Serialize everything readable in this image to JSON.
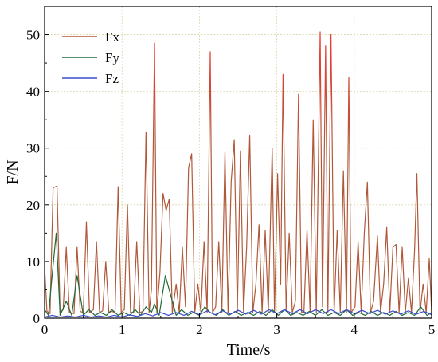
{
  "chart_data": {
    "type": "line",
    "title": "",
    "xlabel": "Time/s",
    "ylabel": "F/N",
    "xlim": [
      0,
      5
    ],
    "ylim": [
      0,
      55
    ],
    "x_ticks": [
      0,
      1,
      2,
      3,
      4,
      5
    ],
    "y_ticks": [
      0,
      10,
      20,
      30,
      40,
      50
    ],
    "grid": true,
    "legend_position": "top-left",
    "series": [
      {
        "name": "Fx",
        "color": "#b0583a",
        "peak_color": "#ff3030",
        "points": [
          [
            0.0,
            9.0
          ],
          [
            0.03,
            1.2
          ],
          [
            0.07,
            0.8
          ],
          [
            0.11,
            23.0
          ],
          [
            0.16,
            23.3
          ],
          [
            0.2,
            1.0
          ],
          [
            0.24,
            1.5
          ],
          [
            0.28,
            12.5
          ],
          [
            0.32,
            1.0
          ],
          [
            0.38,
            0.8
          ],
          [
            0.42,
            12.5
          ],
          [
            0.46,
            1.2
          ],
          [
            0.5,
            1.0
          ],
          [
            0.54,
            17.0
          ],
          [
            0.58,
            1.0
          ],
          [
            0.63,
            1.5
          ],
          [
            0.67,
            13.5
          ],
          [
            0.71,
            1.0
          ],
          [
            0.75,
            1.3
          ],
          [
            0.79,
            10.0
          ],
          [
            0.83,
            1.0
          ],
          [
            0.87,
            1.2
          ],
          [
            0.91,
            1.0
          ],
          [
            0.95,
            23.2
          ],
          [
            0.99,
            1.0
          ],
          [
            1.03,
            1.5
          ],
          [
            1.07,
            20.0
          ],
          [
            1.11,
            1.0
          ],
          [
            1.15,
            1.0
          ],
          [
            1.19,
            13.5
          ],
          [
            1.23,
            1.0
          ],
          [
            1.27,
            1.2
          ],
          [
            1.31,
            32.8
          ],
          [
            1.35,
            1.0
          ],
          [
            1.38,
            5.0
          ],
          [
            1.42,
            48.5
          ],
          [
            1.45,
            1.0
          ],
          [
            1.49,
            8.0
          ],
          [
            1.53,
            22.0
          ],
          [
            1.57,
            19.0
          ],
          [
            1.61,
            21.0
          ],
          [
            1.65,
            1.0
          ],
          [
            1.7,
            6.0
          ],
          [
            1.74,
            1.0
          ],
          [
            1.78,
            12.5
          ],
          [
            1.82,
            2.0
          ],
          [
            1.86,
            26.5
          ],
          [
            1.9,
            29.0
          ],
          [
            1.94,
            1.0
          ],
          [
            1.98,
            6.0
          ],
          [
            2.02,
            1.0
          ],
          [
            2.06,
            13.5
          ],
          [
            2.1,
            1.0
          ],
          [
            2.14,
            47.0
          ],
          [
            2.17,
            1.0
          ],
          [
            2.21,
            2.0
          ],
          [
            2.25,
            13.5
          ],
          [
            2.29,
            1.0
          ],
          [
            2.33,
            29.3
          ],
          [
            2.37,
            1.0
          ],
          [
            2.41,
            24.0
          ],
          [
            2.45,
            31.5
          ],
          [
            2.49,
            1.0
          ],
          [
            2.53,
            29.5
          ],
          [
            2.57,
            1.0
          ],
          [
            2.61,
            12.5
          ],
          [
            2.65,
            32.3
          ],
          [
            2.69,
            1.0
          ],
          [
            2.73,
            6.0
          ],
          [
            2.77,
            16.5
          ],
          [
            2.81,
            1.0
          ],
          [
            2.85,
            15.5
          ],
          [
            2.89,
            1.0
          ],
          [
            2.94,
            30.0
          ],
          [
            2.97,
            1.0
          ],
          [
            3.01,
            25.5
          ],
          [
            3.05,
            6.0
          ],
          [
            3.08,
            43.0
          ],
          [
            3.12,
            1.5
          ],
          [
            3.16,
            15.0
          ],
          [
            3.2,
            1.0
          ],
          [
            3.24,
            3.0
          ],
          [
            3.28,
            39.5
          ],
          [
            3.32,
            1.0
          ],
          [
            3.35,
            1.0
          ],
          [
            3.39,
            15.5
          ],
          [
            3.43,
            1.0
          ],
          [
            3.47,
            35.0
          ],
          [
            3.51,
            1.0
          ],
          [
            3.56,
            50.5
          ],
          [
            3.59,
            2.0
          ],
          [
            3.63,
            48.0
          ],
          [
            3.66,
            1.0
          ],
          [
            3.7,
            50.0
          ],
          [
            3.74,
            1.0
          ],
          [
            3.78,
            15.5
          ],
          [
            3.82,
            1.0
          ],
          [
            3.86,
            26.0
          ],
          [
            3.9,
            1.0
          ],
          [
            3.93,
            42.5
          ],
          [
            3.96,
            1.0
          ],
          [
            4.01,
            2.0
          ],
          [
            4.05,
            13.5
          ],
          [
            4.09,
            1.0
          ],
          [
            4.13,
            15.0
          ],
          [
            4.17,
            24.0
          ],
          [
            4.21,
            1.0
          ],
          [
            4.25,
            3.0
          ],
          [
            4.3,
            14.5
          ],
          [
            4.34,
            1.0
          ],
          [
            4.38,
            6.0
          ],
          [
            4.42,
            16.0
          ],
          [
            4.46,
            1.0
          ],
          [
            4.5,
            12.5
          ],
          [
            4.54,
            13.0
          ],
          [
            4.58,
            1.0
          ],
          [
            4.62,
            12.5
          ],
          [
            4.66,
            1.0
          ],
          [
            4.7,
            7.0
          ],
          [
            4.74,
            1.0
          ],
          [
            4.78,
            12.0
          ],
          [
            4.81,
            25.5
          ],
          [
            4.85,
            1.0
          ],
          [
            4.89,
            6.0
          ],
          [
            4.93,
            1.0
          ],
          [
            4.97,
            10.5
          ],
          [
            5.0,
            1.0
          ]
        ]
      },
      {
        "name": "Fy",
        "color": "#1f6b3a",
        "points": [
          [
            0.0,
            1.5
          ],
          [
            0.05,
            0.5
          ],
          [
            0.1,
            8.0
          ],
          [
            0.15,
            15.0
          ],
          [
            0.2,
            0.5
          ],
          [
            0.28,
            3.0
          ],
          [
            0.35,
            0.5
          ],
          [
            0.42,
            7.5
          ],
          [
            0.5,
            0.5
          ],
          [
            0.57,
            1.5
          ],
          [
            0.65,
            0.5
          ],
          [
            0.72,
            1.0
          ],
          [
            0.8,
            0.5
          ],
          [
            0.87,
            1.5
          ],
          [
            0.95,
            0.5
          ],
          [
            1.02,
            1.0
          ],
          [
            1.1,
            0.5
          ],
          [
            1.17,
            1.5
          ],
          [
            1.24,
            0.5
          ],
          [
            1.31,
            2.0
          ],
          [
            1.38,
            1.0
          ],
          [
            1.42,
            2.5
          ],
          [
            1.48,
            0.5
          ],
          [
            1.56,
            7.5
          ],
          [
            1.63,
            4.0
          ],
          [
            1.7,
            0.5
          ],
          [
            1.77,
            1.5
          ],
          [
            1.85,
            0.5
          ],
          [
            1.92,
            1.0
          ],
          [
            2.0,
            0.5
          ],
          [
            2.07,
            2.0
          ],
          [
            2.14,
            1.0
          ],
          [
            2.22,
            0.5
          ],
          [
            2.3,
            1.5
          ],
          [
            2.38,
            0.5
          ],
          [
            2.46,
            1.2
          ],
          [
            2.54,
            0.5
          ],
          [
            2.62,
            1.0
          ],
          [
            2.7,
            0.5
          ],
          [
            2.78,
            1.2
          ],
          [
            2.86,
            0.5
          ],
          [
            2.94,
            1.5
          ],
          [
            3.02,
            0.5
          ],
          [
            3.1,
            1.5
          ],
          [
            3.18,
            0.5
          ],
          [
            3.26,
            1.0
          ],
          [
            3.34,
            0.5
          ],
          [
            3.42,
            1.2
          ],
          [
            3.5,
            0.5
          ],
          [
            3.58,
            1.5
          ],
          [
            3.66,
            0.5
          ],
          [
            3.74,
            1.0
          ],
          [
            3.82,
            0.5
          ],
          [
            3.9,
            1.5
          ],
          [
            3.98,
            0.5
          ],
          [
            4.06,
            1.0
          ],
          [
            4.14,
            0.5
          ],
          [
            4.22,
            1.2
          ],
          [
            4.3,
            0.5
          ],
          [
            4.38,
            1.0
          ],
          [
            4.46,
            0.5
          ],
          [
            4.54,
            1.2
          ],
          [
            4.62,
            0.5
          ],
          [
            4.7,
            1.0
          ],
          [
            4.78,
            0.5
          ],
          [
            4.86,
            2.0
          ],
          [
            4.94,
            0.5
          ],
          [
            5.0,
            1.0
          ]
        ]
      },
      {
        "name": "Fz",
        "color": "#3a4bd0",
        "points": [
          [
            0.0,
            0.2
          ],
          [
            0.1,
            0.5
          ],
          [
            0.2,
            0.2
          ],
          [
            0.3,
            0.4
          ],
          [
            0.4,
            0.2
          ],
          [
            0.5,
            0.5
          ],
          [
            0.6,
            0.2
          ],
          [
            0.7,
            0.4
          ],
          [
            0.8,
            0.2
          ],
          [
            0.9,
            0.5
          ],
          [
            1.0,
            0.2
          ],
          [
            1.1,
            0.6
          ],
          [
            1.2,
            0.3
          ],
          [
            1.3,
            0.8
          ],
          [
            1.4,
            0.4
          ],
          [
            1.5,
            1.0
          ],
          [
            1.6,
            0.5
          ],
          [
            1.7,
            1.0
          ],
          [
            1.8,
            0.5
          ],
          [
            1.9,
            1.2
          ],
          [
            2.0,
            0.6
          ],
          [
            2.1,
            1.3
          ],
          [
            2.2,
            0.6
          ],
          [
            2.3,
            1.3
          ],
          [
            2.4,
            0.7
          ],
          [
            2.5,
            1.4
          ],
          [
            2.6,
            0.7
          ],
          [
            2.7,
            1.4
          ],
          [
            2.8,
            0.7
          ],
          [
            2.9,
            1.5
          ],
          [
            3.0,
            0.8
          ],
          [
            3.1,
            1.5
          ],
          [
            3.2,
            0.8
          ],
          [
            3.3,
            1.5
          ],
          [
            3.4,
            0.8
          ],
          [
            3.5,
            1.5
          ],
          [
            3.6,
            0.8
          ],
          [
            3.7,
            1.5
          ],
          [
            3.8,
            0.8
          ],
          [
            3.9,
            1.5
          ],
          [
            4.0,
            0.8
          ],
          [
            4.1,
            1.4
          ],
          [
            4.2,
            0.8
          ],
          [
            4.3,
            1.4
          ],
          [
            4.4,
            0.7
          ],
          [
            4.5,
            1.3
          ],
          [
            4.6,
            0.7
          ],
          [
            4.7,
            1.3
          ],
          [
            4.8,
            0.7
          ],
          [
            4.9,
            1.2
          ],
          [
            5.0,
            0.6
          ]
        ]
      }
    ]
  }
}
